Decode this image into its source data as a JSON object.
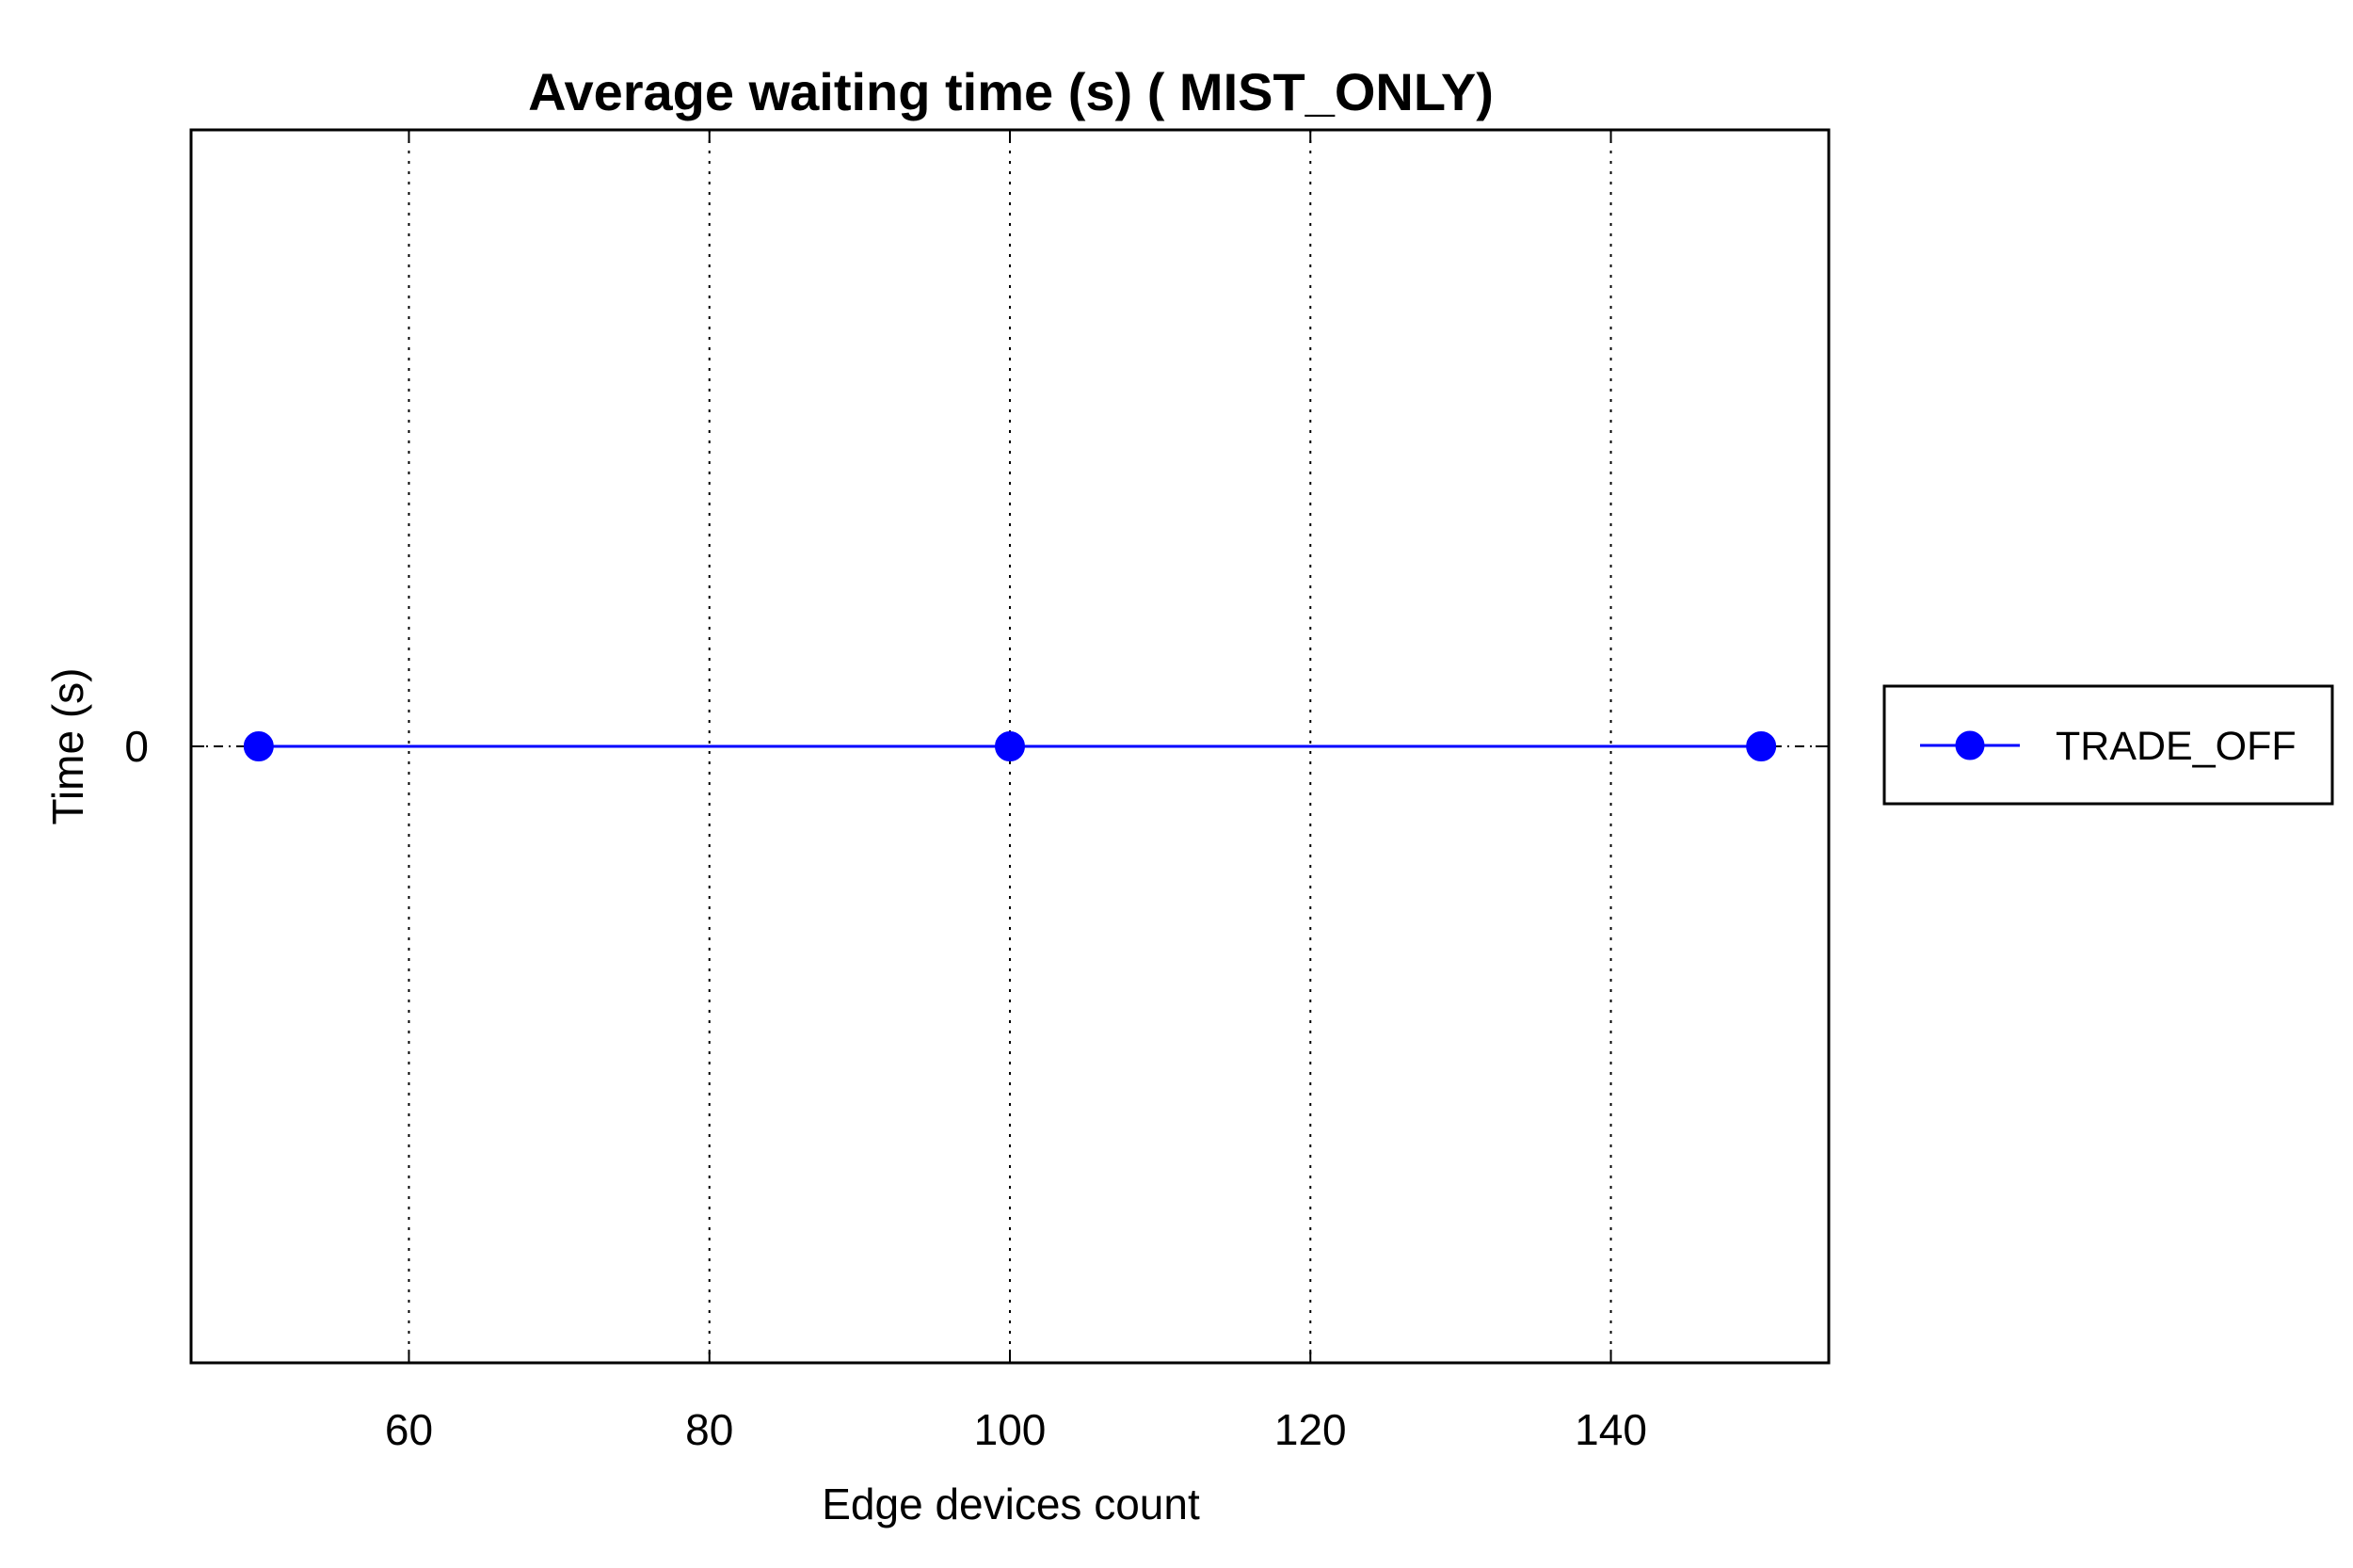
{
  "chart_data": {
    "type": "line",
    "title": "Average waiting time (s) ( MIST_ONLY)",
    "xlabel": "Edge devices count",
    "ylabel": "Time (s)",
    "x": [
      50,
      100,
      150
    ],
    "series": [
      {
        "name": "TRADE_OFF",
        "values": [
          0,
          0,
          0
        ],
        "color": "#0000ff",
        "marker": "circle"
      }
    ],
    "xlim": [
      45.5,
      154.5
    ],
    "ylim": [
      -1,
      1
    ],
    "xticks": [
      60,
      80,
      100,
      120,
      140
    ],
    "xtick_labels": [
      "60",
      "80",
      "100",
      "120",
      "140"
    ],
    "yticks": [
      0
    ],
    "ytick_labels": [
      "0"
    ],
    "grid": "vertical-dotted",
    "legend_position": "outside-right"
  }
}
